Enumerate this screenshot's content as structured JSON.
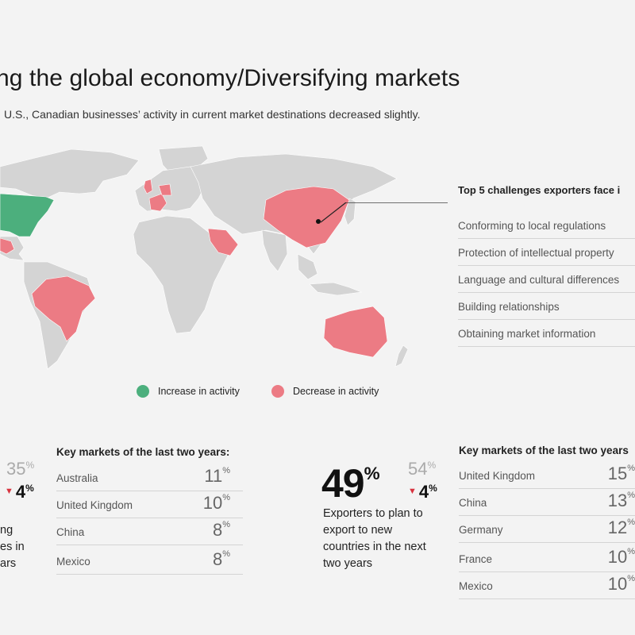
{
  "title": "ng the global economy/Diversifying markets",
  "subtitle": "U.S., Canadian businesses’ activity in current market destinations decreased slightly.",
  "challenges": {
    "heading": "Top 5 challenges exporters face i",
    "items": [
      "Conforming to local regulations",
      "Protection of intellectual property",
      "Language and cultural differences",
      "Building relationships",
      "Obtaining market information"
    ]
  },
  "legend": {
    "increase": {
      "label": "Increase in activity",
      "color": "#4caf7d"
    },
    "decrease": {
      "label": "Decrease in activity",
      "color": "#ec7b84"
    }
  },
  "colors": {
    "land": "#d4d4d4",
    "increase": "#4caf7d",
    "decrease": "#ec7b84",
    "down_arrow": "#d8333f"
  },
  "left_stat": {
    "previous": "35",
    "delta": "4",
    "description_lines": [
      "ng",
      "es in",
      "ars"
    ]
  },
  "right_stat": {
    "current": "49",
    "previous": "54",
    "delta": "4",
    "description_lines": [
      "Exporters to plan to",
      "export to new",
      "countries in the next",
      "two years"
    ]
  },
  "percent_sign": "%",
  "key_markets_left": {
    "title": "Key markets of the last two years:",
    "rows": [
      {
        "name": "Australia",
        "value": "11"
      },
      {
        "name": "United Kingdom",
        "value": "10"
      },
      {
        "name": "China",
        "value": "8"
      },
      {
        "name": "Mexico",
        "value": "8"
      }
    ]
  },
  "key_markets_right": {
    "title": "Key markets of the last two years",
    "rows": [
      {
        "name": "United Kingdom",
        "value": "15"
      },
      {
        "name": "China",
        "value": "13"
      },
      {
        "name": "Germany",
        "value": "12"
      },
      {
        "name": "France",
        "value": "10"
      },
      {
        "name": "Mexico",
        "value": "10"
      }
    ]
  }
}
